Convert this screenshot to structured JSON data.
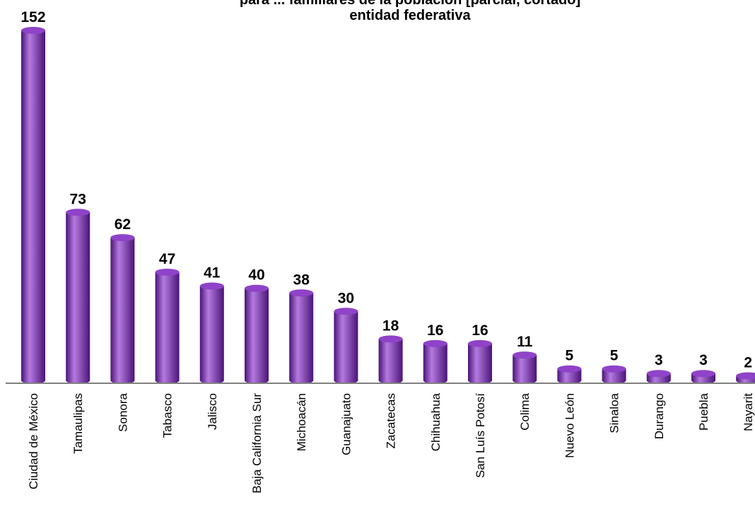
{
  "chart_data": {
    "type": "bar",
    "title_lines": [
      "para ... familiares de la población [parcial, cortado]",
      "entidad federativa"
    ],
    "categories": [
      "Ciudad de México",
      "Tamaulipas",
      "Sonora",
      "Tabasco",
      "Jalisco",
      "Baja California Sur",
      "Michoacán",
      "Guanajuato",
      "Zacatecas",
      "Chihuahua",
      "San Luís Potosí",
      "Colima",
      "Nuevo León",
      "Sinaloa",
      "Durango",
      "Puebla",
      "Nayarit"
    ],
    "values": [
      152,
      73,
      62,
      47,
      41,
      40,
      38,
      30,
      18,
      16,
      16,
      11,
      5,
      5,
      3,
      3,
      2
    ],
    "ylim": [
      0,
      152
    ],
    "grid": false,
    "legend": "none",
    "bar_style": "cylinder",
    "colors": {
      "bar": "#7a2fb5",
      "bar_dark": "#4a1478",
      "bar_light": "#b57ae0",
      "bar_top": "#8f43c8",
      "axis": "#808080"
    }
  }
}
